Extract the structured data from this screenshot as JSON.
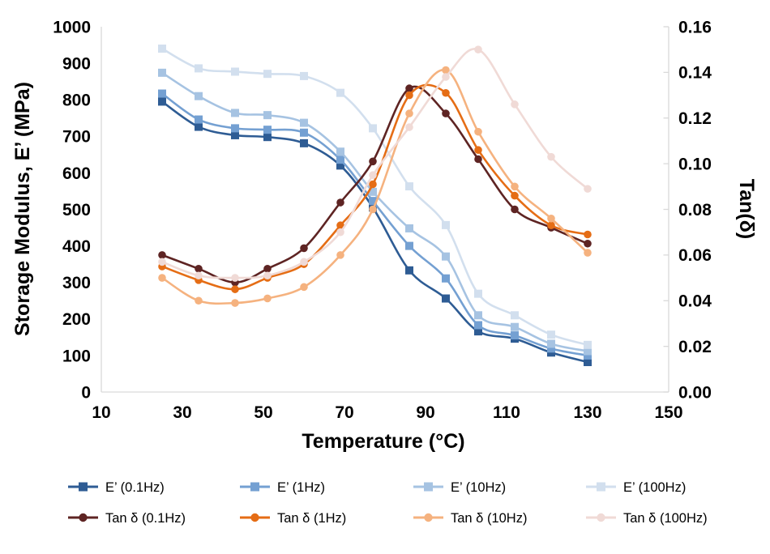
{
  "figure": {
    "background": "#ffffff",
    "axis_color": "#d9d9d9",
    "text_color": "#000000"
  },
  "chart_data": {
    "type": "line",
    "title": "",
    "xlabel": "Temperature (°C)",
    "ylabel_left": "Storage Modulus, E’ (MPa)",
    "ylabel_right": "Tan(δ)",
    "grid": false,
    "legend_position": "bottom",
    "legend_rows": 2,
    "legend_columns": 4,
    "xlim": [
      10,
      150
    ],
    "x_tick_labels": [
      "10",
      "30",
      "50",
      "70",
      "90",
      "110",
      "130",
      "150"
    ],
    "x_ticks": [
      10,
      30,
      50,
      70,
      90,
      110,
      130,
      150
    ],
    "ylim_left": [
      0,
      1000
    ],
    "y_ticks_left": [
      0,
      100,
      200,
      300,
      400,
      500,
      600,
      700,
      800,
      900,
      1000
    ],
    "y_tick_labels_left": [
      "0",
      "100",
      "200",
      "300",
      "400",
      "500",
      "600",
      "700",
      "800",
      "900",
      "1000"
    ],
    "ylim_right": [
      0,
      0.16
    ],
    "y_ticks_right": [
      0.0,
      0.02,
      0.04,
      0.06,
      0.08,
      0.1,
      0.12,
      0.14,
      0.16
    ],
    "y_tick_labels_right": [
      "0.00",
      "0.02",
      "0.04",
      "0.06",
      "0.08",
      "0.10",
      "0.12",
      "0.14",
      "0.16"
    ],
    "x": [
      25,
      34,
      43,
      51,
      60,
      69,
      77,
      86,
      95,
      103,
      112,
      121,
      130
    ],
    "series": [
      {
        "name": "E’ (0.1Hz)",
        "axis": "left",
        "marker": "square",
        "color": "#2e5c94",
        "values": [
          795,
          726,
          703,
          698,
          681,
          620,
          505,
          333,
          256,
          166,
          146,
          108,
          82
        ]
      },
      {
        "name": "E’ (1Hz)",
        "axis": "left",
        "marker": "square",
        "color": "#74a0d2",
        "values": [
          817,
          746,
          722,
          718,
          710,
          636,
          523,
          400,
          311,
          183,
          155,
          119,
          100
        ]
      },
      {
        "name": "E’ (10Hz)",
        "axis": "left",
        "marker": "square",
        "color": "#a6c3e2",
        "values": [
          874,
          810,
          764,
          758,
          737,
          658,
          548,
          448,
          371,
          210,
          178,
          132,
          112
        ]
      },
      {
        "name": "E’ (100Hz)",
        "axis": "left",
        "marker": "square",
        "color": "#d2dfee",
        "values": [
          940,
          886,
          877,
          871,
          865,
          819,
          722,
          563,
          457,
          269,
          210,
          157,
          129
        ]
      },
      {
        "name": "Tan δ (0.1Hz)",
        "axis": "right",
        "marker": "circle",
        "color": "#5e2423",
        "values": [
          0.06,
          0.054,
          0.048,
          0.054,
          0.063,
          0.083,
          0.101,
          0.133,
          0.122,
          0.102,
          0.08,
          0.072,
          0.065
        ]
      },
      {
        "name": "Tan δ (1Hz)",
        "axis": "right",
        "marker": "circle",
        "color": "#e56d15",
        "values": [
          0.055,
          0.049,
          0.045,
          0.05,
          0.056,
          0.073,
          0.091,
          0.13,
          0.131,
          0.106,
          0.086,
          0.073,
          0.069
        ]
      },
      {
        "name": "Tan δ (10Hz)",
        "axis": "right",
        "marker": "circle",
        "color": "#f5b27f",
        "values": [
          0.05,
          0.04,
          0.039,
          0.041,
          0.046,
          0.06,
          0.08,
          0.122,
          0.141,
          0.114,
          0.09,
          0.076,
          0.061
        ]
      },
      {
        "name": "Tan δ (100Hz)",
        "axis": "right",
        "marker": "circle",
        "color": "#f0dad6",
        "values": [
          0.057,
          0.051,
          0.05,
          0.051,
          0.057,
          0.07,
          0.095,
          0.116,
          0.138,
          0.15,
          0.126,
          0.103,
          0.089
        ]
      }
    ]
  }
}
